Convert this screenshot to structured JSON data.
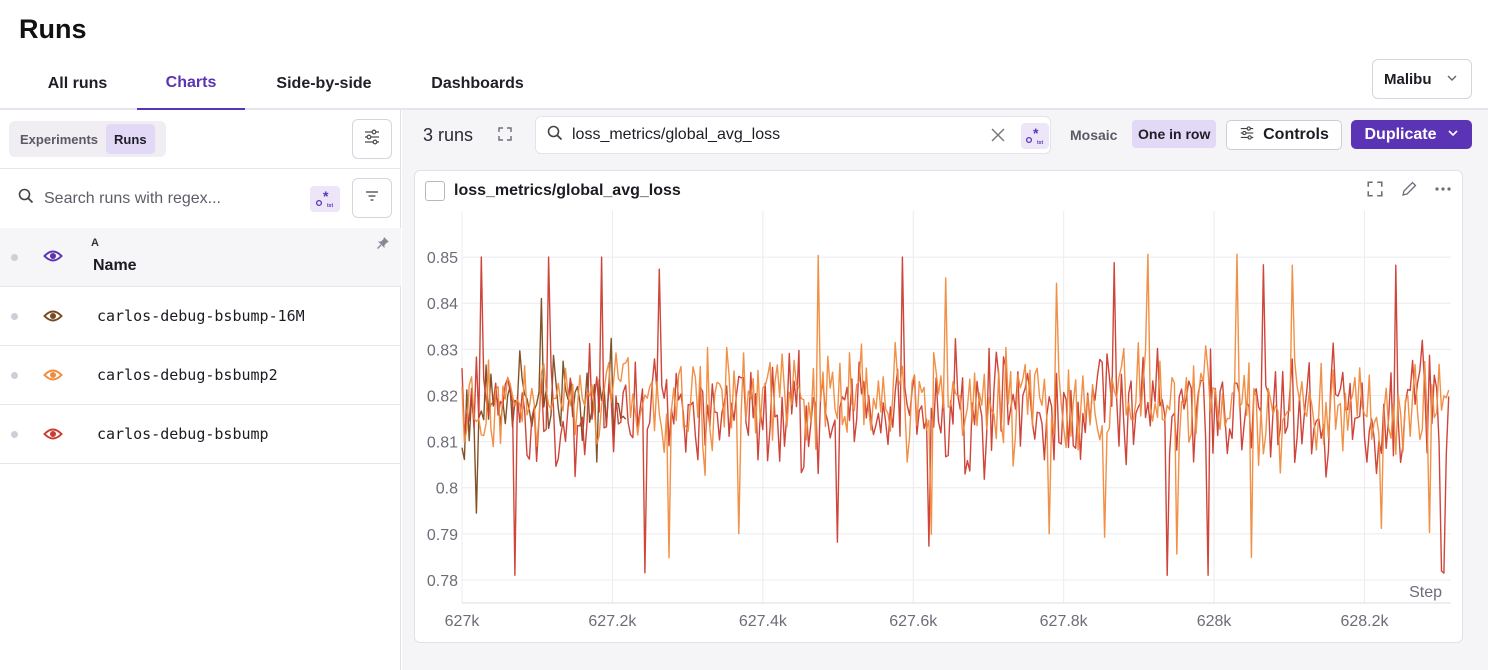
{
  "page": {
    "title": "Runs"
  },
  "tabs": [
    {
      "label": "All runs",
      "active": false
    },
    {
      "label": "Charts",
      "active": true
    },
    {
      "label": "Side-by-side",
      "active": false
    },
    {
      "label": "Dashboards",
      "active": false
    }
  ],
  "project_select": {
    "value": "Malibu"
  },
  "sidebar": {
    "segments": [
      {
        "label": "Experiments",
        "active": false
      },
      {
        "label": "Runs",
        "active": true
      }
    ],
    "search": {
      "placeholder": "Search runs with regex...",
      "value": ""
    },
    "regex_badge": "∗",
    "table": {
      "column_letter": "A",
      "column_name": "Name"
    },
    "runs": [
      {
        "name": "carlos-debug-bsbump-16M",
        "color": "#7a4a1e"
      },
      {
        "name": "carlos-debug-bsbump2",
        "color": "#f08a3c"
      },
      {
        "name": "carlos-debug-bsbump",
        "color": "#cc3b2f"
      }
    ]
  },
  "toolbar": {
    "runs_count": "3 runs",
    "metric_search": "loss_metrics/global_avg_loss",
    "layout_options": [
      {
        "label": "Mosaic",
        "active": false
      },
      {
        "label": "One in row",
        "active": true
      }
    ],
    "controls_label": "Controls",
    "duplicate_label": "Duplicate"
  },
  "panel": {
    "title": "loss_metrics/global_avg_loss"
  },
  "chart_data": {
    "type": "line",
    "title": "loss_metrics/global_avg_loss",
    "xlabel": "Step",
    "ylabel": "",
    "xlim": [
      627000,
      628315
    ],
    "ylim": [
      0.775,
      0.86
    ],
    "x_tick_labels": [
      "627k",
      "627.2k",
      "627.4k",
      "627.6k",
      "627.8k",
      "628k",
      "628.2k"
    ],
    "x_tick_values": [
      627000,
      627200,
      627400,
      627600,
      627800,
      628000,
      628200
    ],
    "y_tick_labels": [
      "0.78",
      "0.79",
      "0.8",
      "0.81",
      "0.82",
      "0.83",
      "0.84",
      "0.85"
    ],
    "y_tick_values": [
      0.78,
      0.79,
      0.8,
      0.81,
      0.82,
      0.83,
      0.84,
      0.85
    ],
    "grid": true,
    "series": [
      {
        "name": "carlos-debug-bsbump-16M",
        "color": "#7a4a1e",
        "x_start": 627000,
        "x_end": 627220,
        "mean": 0.818,
        "spread": 0.009,
        "min": 0.79,
        "max": 0.841
      },
      {
        "name": "carlos-debug-bsbump",
        "color": "#cc3b2f",
        "x_start": 627000,
        "x_end": 628315,
        "mean": 0.817,
        "spread": 0.011,
        "min": 0.781,
        "max": 0.85
      },
      {
        "name": "carlos-debug-bsbump2",
        "color": "#f08a3c",
        "x_start": 627000,
        "x_end": 628315,
        "mean": 0.818,
        "spread": 0.01,
        "min": 0.783,
        "max": 0.853
      }
    ]
  }
}
